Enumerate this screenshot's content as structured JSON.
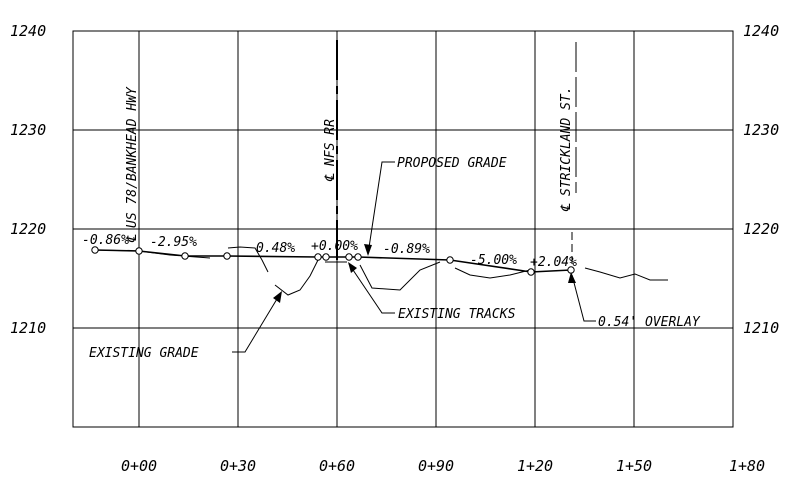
{
  "elevation_labels": [
    "1240",
    "1230",
    "1220",
    "1210"
  ],
  "station_labels": [
    "0+00",
    "0+30",
    "0+60",
    "0+90",
    "1+20",
    "1+50",
    "1+80"
  ],
  "vertical_labels": {
    "bankhead": "US 78/BANKHEAD HWY",
    "nfs": "NFS RR",
    "strickland": "STRICKLAND ST."
  },
  "grades": {
    "g1": "-0.86%",
    "g2": "-2.95%",
    "g3": "0.48%",
    "g4": "+0.00%",
    "g5": "-0.89%",
    "g6": "-5.00%",
    "g7": "+2.04%"
  },
  "callouts": {
    "proposed_grade": "PROPOSED GRADE",
    "existing_tracks": "EXISTING TRACKS",
    "overlay": "0.54' OVERLAY",
    "existing_grade": "EXISTING GRADE"
  }
}
